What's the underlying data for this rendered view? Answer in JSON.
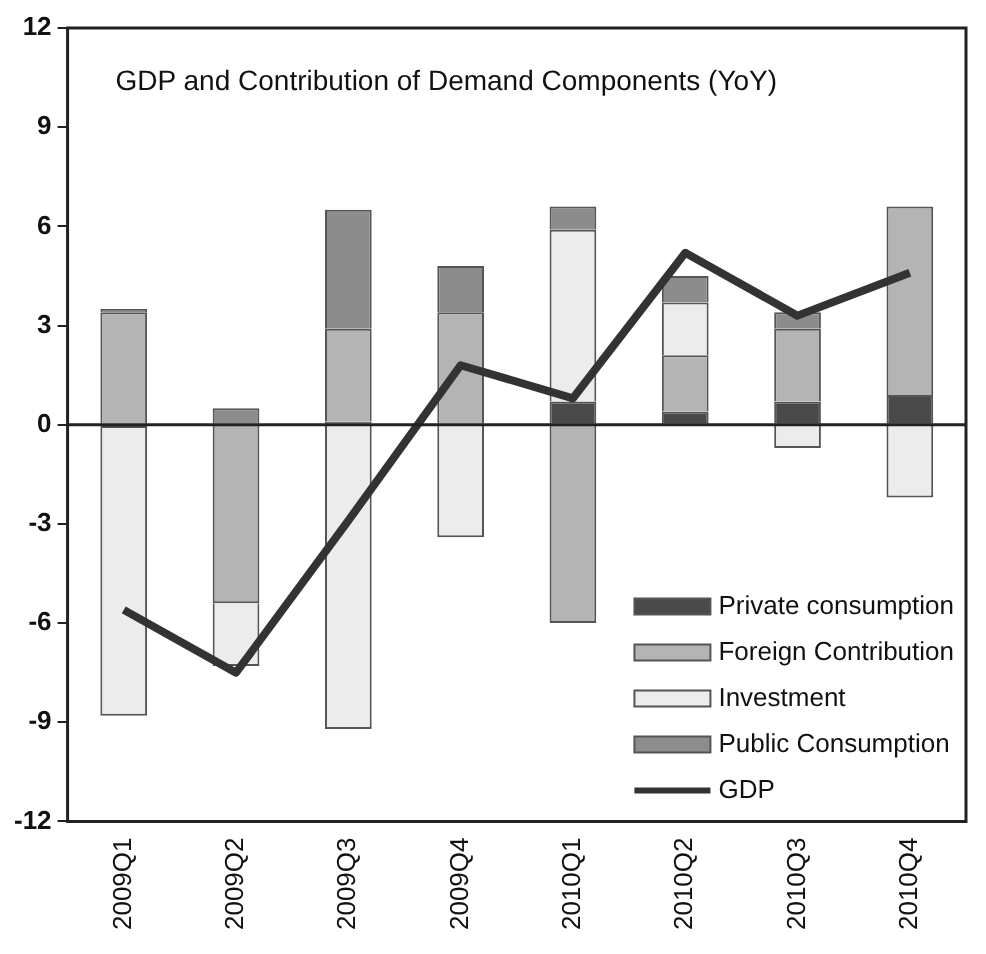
{
  "chart_data": {
    "type": "bar",
    "title": "GDP and Contribution of Demand Components (YoY)",
    "categories": [
      "2009Q1",
      "2009Q2",
      "2009Q3",
      "2009Q4",
      "2010Q1",
      "2010Q2",
      "2010Q3",
      "2010Q4"
    ],
    "stacked": true,
    "series": [
      {
        "name": "Private consumption",
        "color": "#4a4a4a",
        "values": [
          -0.1,
          0,
          0.1,
          0,
          0.7,
          0.4,
          0.7,
          0.9
        ]
      },
      {
        "name": "Foreign Contribution",
        "color": "#b4b4b4",
        "values": [
          3.4,
          -5.4,
          2.8,
          3.4,
          -6.0,
          1.7,
          2.2,
          5.7
        ]
      },
      {
        "name": "Investment",
        "color": "#ececec",
        "values": [
          -8.7,
          -1.9,
          -9.2,
          -3.4,
          5.2,
          1.6,
          -0.7,
          -2.2
        ]
      },
      {
        "name": "Public Consumption",
        "color": "#8c8c8c",
        "values": [
          0.1,
          0.5,
          3.6,
          1.4,
          0.7,
          0.8,
          0.5,
          0
        ]
      },
      {
        "name": "GDP",
        "type": "line",
        "color": "#333333",
        "values": [
          -5.6,
          -7.5,
          -2.9,
          1.8,
          0.8,
          5.2,
          3.3,
          4.6
        ]
      }
    ],
    "ylim": [
      -12,
      12
    ],
    "yticks": [
      -12,
      -9,
      -6,
      -3,
      0,
      3,
      6,
      9,
      12
    ],
    "grid": false,
    "ref_lines": [
      {
        "axis": "y",
        "value": 0,
        "color": "#222222"
      }
    ],
    "legend": "bottom right",
    "marker": "none"
  }
}
